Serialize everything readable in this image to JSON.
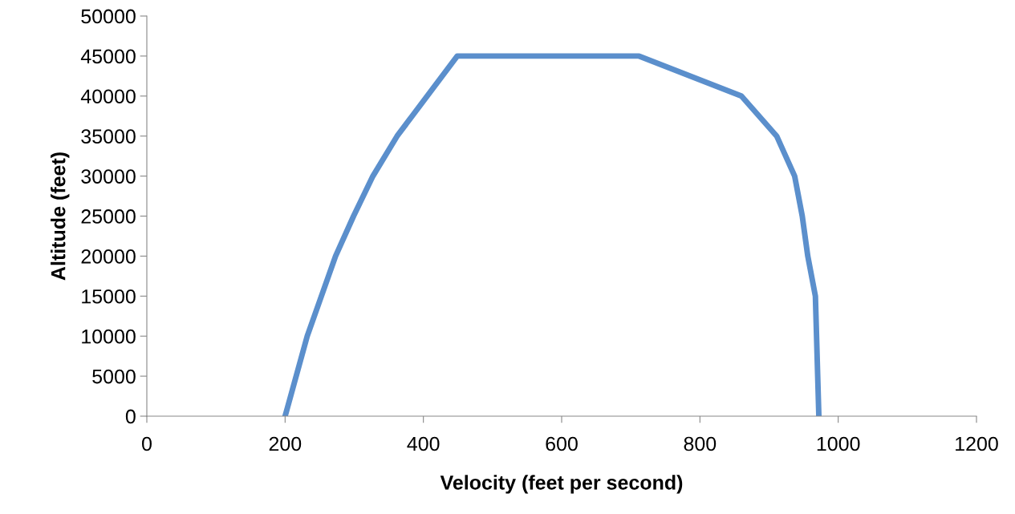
{
  "chart_data": {
    "type": "line",
    "xlabel": "Velocity (feet per second)",
    "ylabel": "Altitude (feet)",
    "series": [
      {
        "color": "#5b8fcc",
        "x": [
          200,
          232,
          273,
          299,
          327,
          362,
          449,
          712,
          860,
          911,
          937,
          948,
          956,
          967,
          972
        ],
        "values": [
          0,
          10000,
          20000,
          25000,
          30000,
          35000,
          45000,
          45000,
          40000,
          35000,
          30000,
          25000,
          20000,
          15000,
          0
        ]
      }
    ],
    "xlim": [
      0,
      1200
    ],
    "xticks": [
      0,
      200,
      400,
      600,
      800,
      1000,
      1200
    ],
    "ylim": [
      0,
      50000
    ],
    "yticks": [
      0,
      5000,
      10000,
      15000,
      20000,
      25000,
      30000,
      35000,
      40000,
      45000,
      50000
    ],
    "grid": false,
    "legend": false,
    "marker": "none",
    "line_style": "solid"
  }
}
